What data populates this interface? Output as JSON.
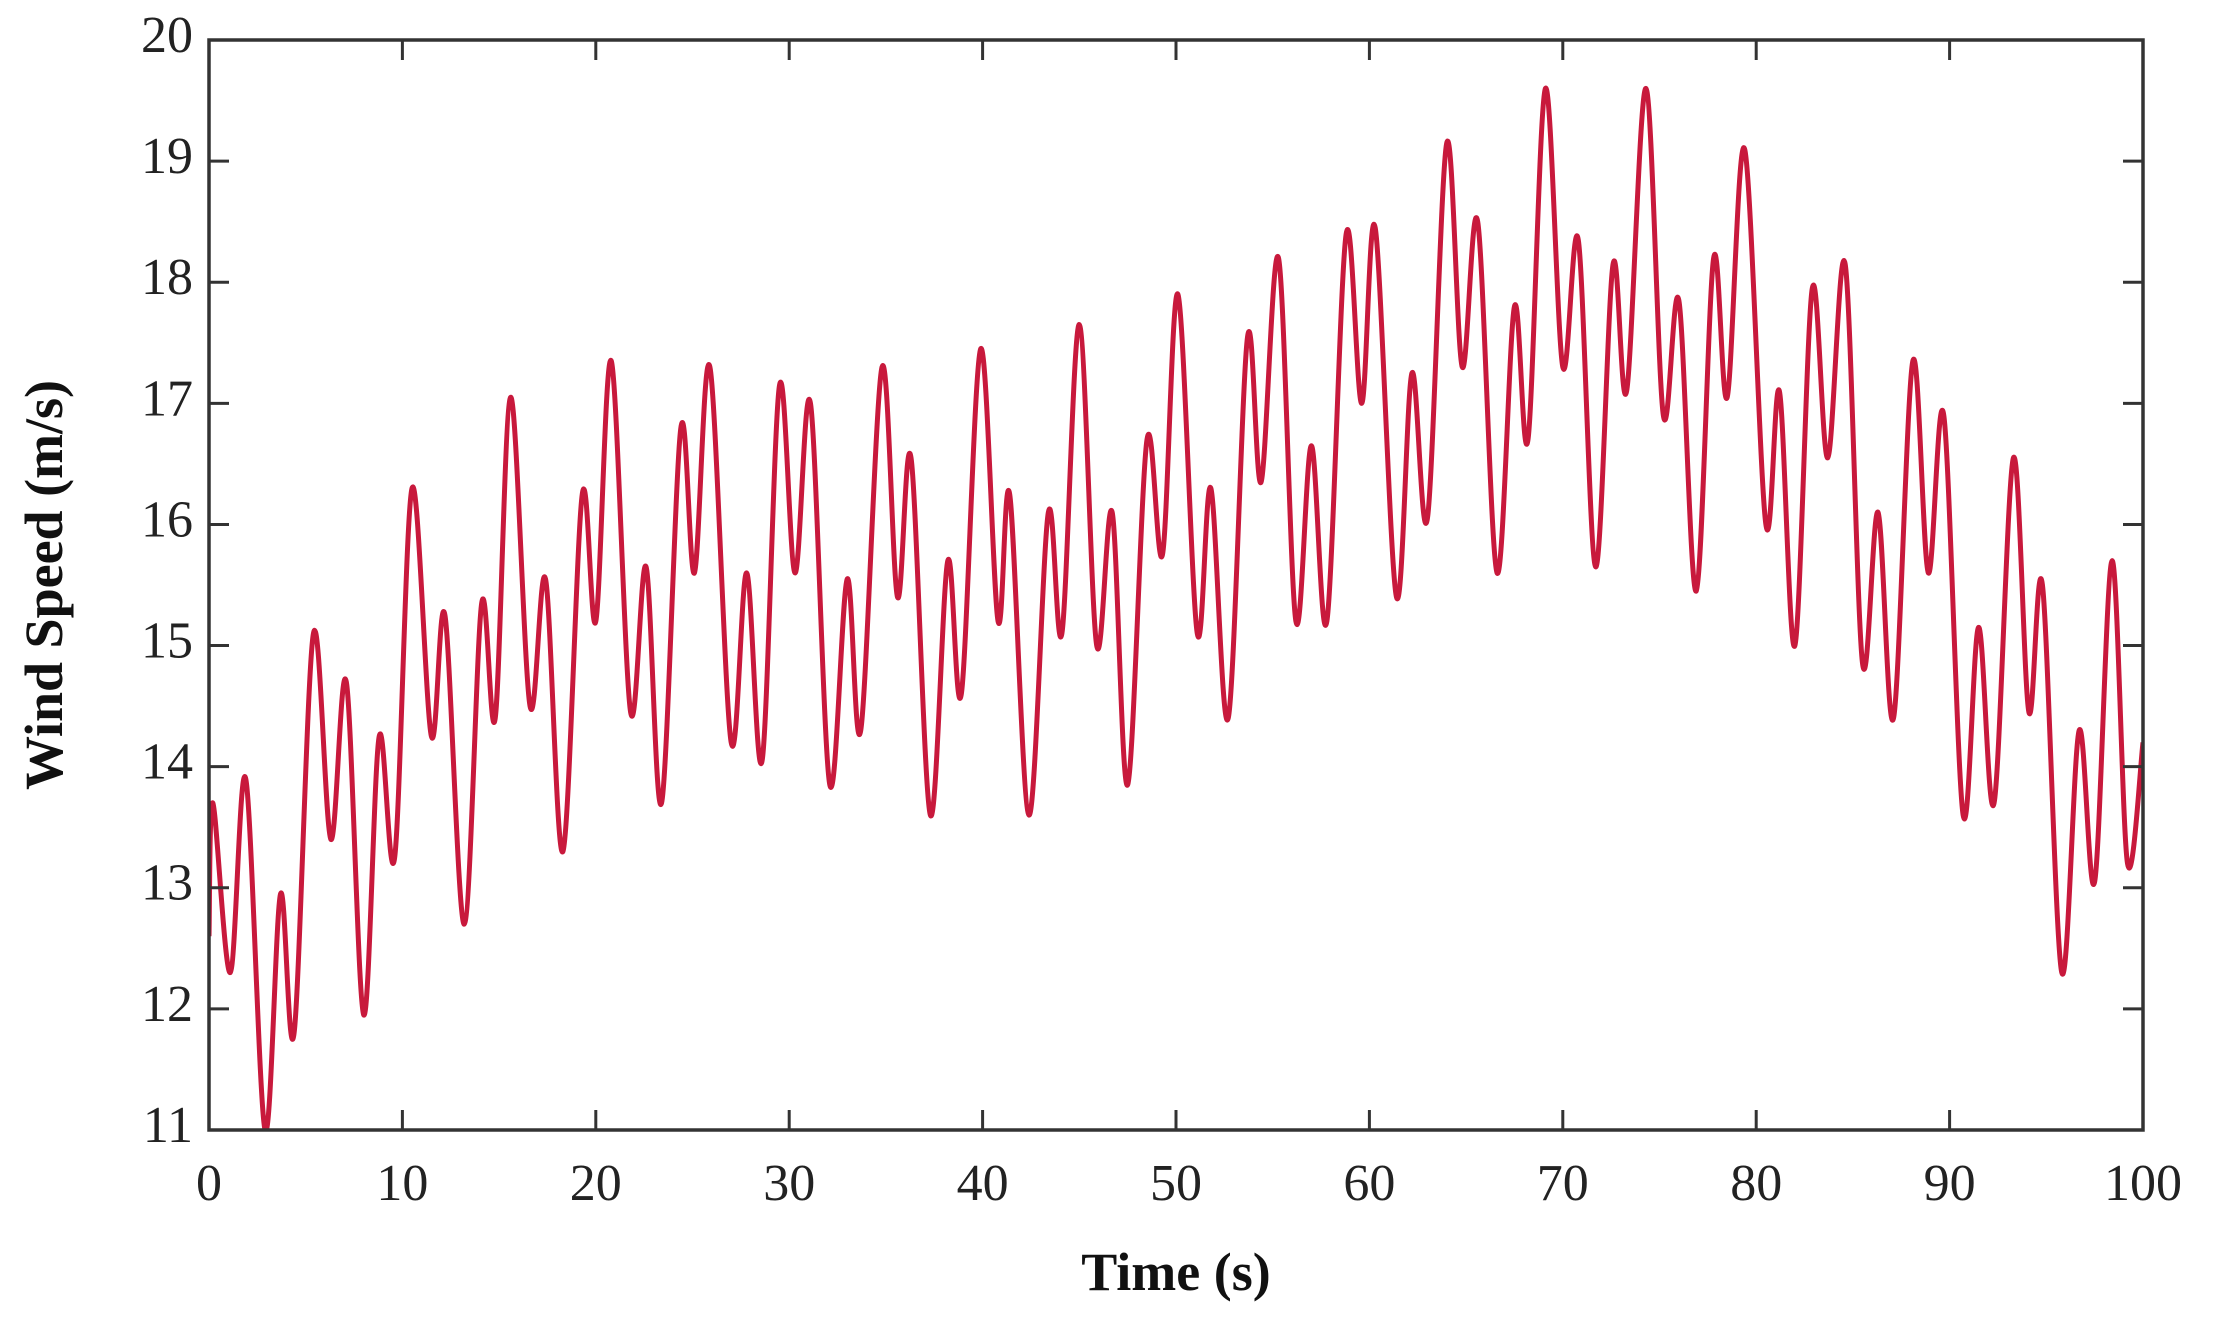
{
  "chart_data": {
    "type": "line",
    "xlabel": "Time (s)",
    "ylabel": "Wind Speed (m/s)",
    "color": "#c8193c",
    "xlim": [
      0,
      100
    ],
    "xticks": [
      0,
      10,
      20,
      30,
      40,
      50,
      60,
      70,
      80,
      90,
      100
    ],
    "ylim": [
      11,
      20
    ],
    "yticks": [
      11,
      12,
      13,
      14,
      15,
      16,
      17,
      18,
      19,
      20
    ],
    "x": [
      0,
      0.2,
      1.1,
      1.9,
      2.9,
      3.7,
      4.4,
      5.4,
      6.3,
      7.1,
      8.0,
      8.8,
      9.6,
      10.5,
      11.5,
      12.2,
      13.2,
      14.1,
      14.8,
      15.6,
      16.6,
      17.4,
      18.3,
      19.3,
      20.0,
      20.8,
      21.8,
      22.6,
      23.4,
      24.4,
      25.1,
      25.9,
      27.0,
      27.8,
      28.6,
      29.5,
      30.3,
      31.1,
      32.1,
      33.0,
      33.7,
      34.8,
      35.6,
      36.3,
      37.3,
      38.2,
      38.9,
      39.9,
      40.8,
      41.4,
      42.4,
      43.4,
      44.1,
      45.0,
      45.9,
      46.7,
      47.5,
      48.5,
      49.3,
      50.1,
      51.1,
      51.8,
      52.7,
      53.7,
      54.4,
      55.3,
      56.2,
      57.0,
      57.8,
      58.8,
      59.6,
      60.3,
      61.4,
      62.2,
      63.0,
      64.0,
      64.8,
      65.6,
      66.6,
      67.5,
      68.2,
      69.1,
      70.0,
      70.8,
      71.7,
      72.6,
      73.3,
      74.3,
      75.2,
      76.0,
      76.9,
      77.8,
      78.5,
      79.4,
      80.5,
      81.2,
      82.0,
      82.9,
      83.7,
      84.6,
      85.5,
      86.3,
      87.1,
      88.1,
      88.9,
      89.7,
      90.7,
      91.5,
      92.3,
      93.3,
      94.1,
      94.8,
      95.8,
      96.7,
      97.5,
      98.4,
      99.2,
      100
    ],
    "values": [
      12.6,
      13.7,
      12.3,
      13.9,
      11.0,
      12.95,
      11.8,
      15.1,
      13.4,
      14.7,
      11.95,
      14.25,
      13.25,
      16.3,
      14.25,
      15.25,
      12.7,
      15.35,
      14.4,
      17.05,
      14.5,
      15.55,
      13.3,
      16.25,
      15.2,
      17.35,
      14.45,
      15.65,
      13.7,
      16.8,
      15.6,
      17.3,
      14.2,
      15.6,
      14.05,
      17.15,
      15.6,
      17.0,
      13.85,
      15.55,
      14.3,
      17.3,
      15.4,
      16.55,
      13.6,
      15.7,
      14.6,
      17.45,
      15.2,
      16.25,
      13.6,
      16.1,
      15.1,
      17.65,
      15.0,
      16.1,
      13.85,
      16.7,
      15.75,
      17.9,
      15.1,
      16.3,
      14.4,
      17.55,
      16.35,
      18.2,
      15.2,
      16.65,
      15.2,
      18.4,
      17.0,
      18.45,
      15.4,
      17.25,
      16.05,
      19.15,
      17.3,
      18.5,
      15.6,
      17.8,
      16.7,
      19.6,
      17.3,
      18.35,
      15.65,
      18.15,
      17.1,
      19.6,
      16.9,
      17.85,
      15.45,
      18.2,
      17.05,
      19.1,
      16.0,
      17.1,
      15.0,
      17.95,
      16.55,
      18.15,
      14.85,
      16.1,
      14.4,
      17.35,
      15.6,
      16.9,
      13.6,
      15.15,
      13.7,
      16.55,
      14.45,
      15.5,
      12.3,
      14.3,
      13.05,
      15.7,
      13.2,
      14.2
    ]
  }
}
